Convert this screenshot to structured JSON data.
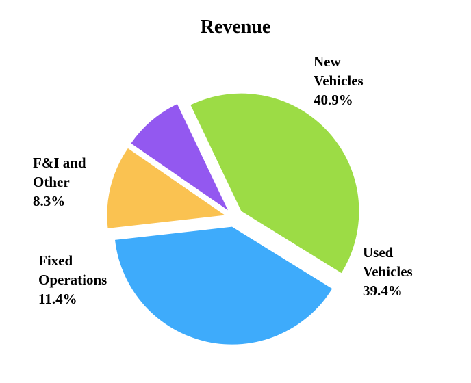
{
  "chart_data": {
    "type": "pie",
    "title": "Revenue",
    "slices": [
      {
        "label_lines": [
          "New",
          "Vehicles"
        ],
        "value": 40.9,
        "percent_label": "40.9%",
        "color": "#9cdc45"
      },
      {
        "label_lines": [
          "Used",
          "Vehicles"
        ],
        "value": 39.4,
        "percent_label": "39.4%",
        "color": "#3eabfb"
      },
      {
        "label_lines": [
          "Fixed",
          "Operations"
        ],
        "value": 11.4,
        "percent_label": "11.4%",
        "color": "#fac251"
      },
      {
        "label_lines": [
          "F&I and",
          "Other"
        ],
        "value": 8.3,
        "percent_label": "8.3%",
        "color": "#9358f0"
      }
    ],
    "exploded": true,
    "legend": "none",
    "data_labels": "outside"
  }
}
